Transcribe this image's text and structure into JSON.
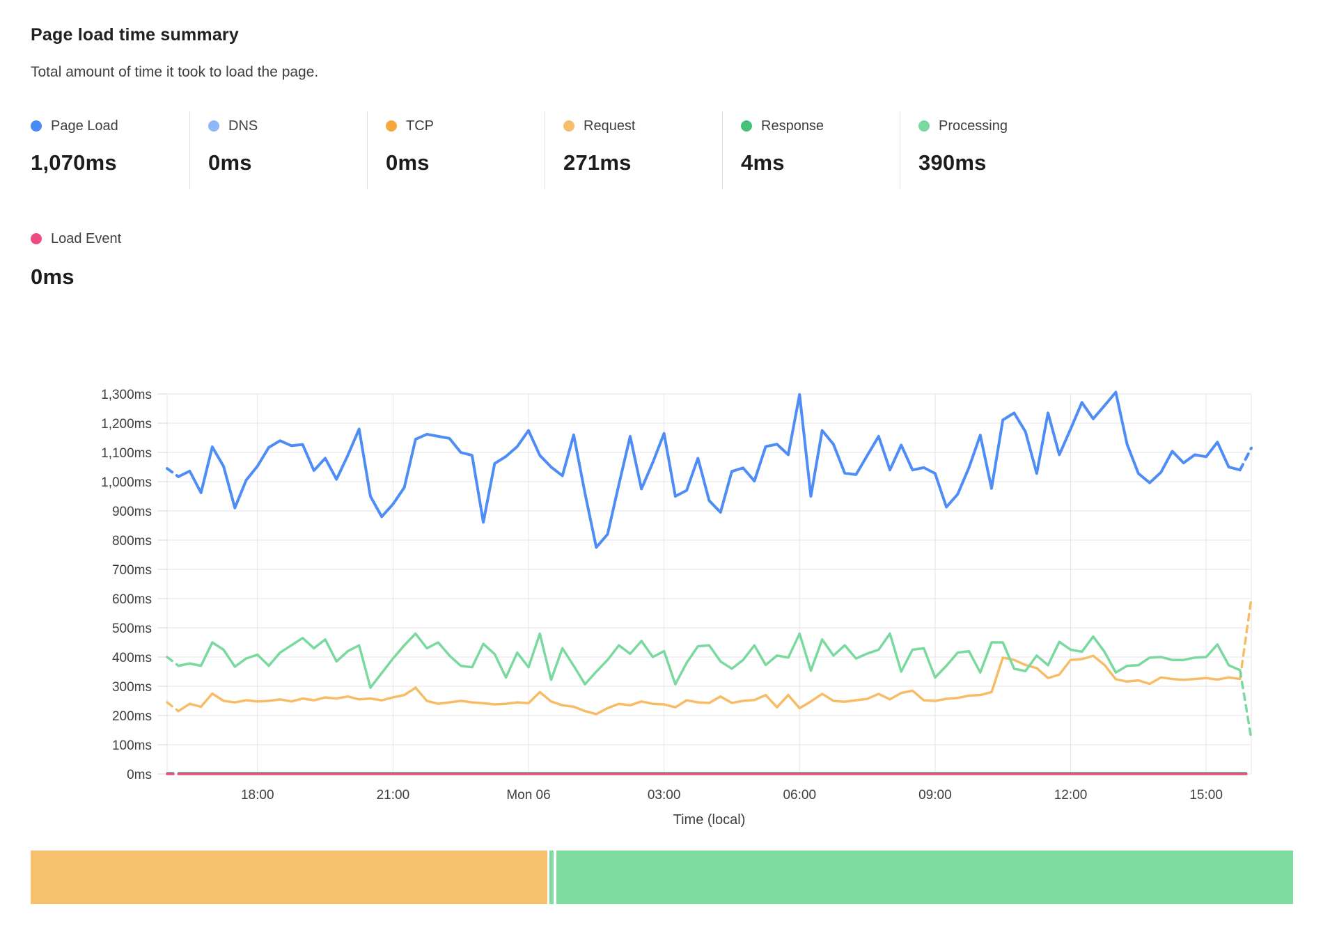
{
  "header": {
    "title": "Page load time summary",
    "subtitle": "Total amount of time it took to load the page."
  },
  "summary": {
    "items": [
      {
        "label": "Page Load",
        "value": "1,070ms",
        "color": "#4A8CF5"
      },
      {
        "label": "DNS",
        "value": "0ms",
        "color": "#8FB8F9"
      },
      {
        "label": "TCP",
        "value": "0ms",
        "color": "#F5A83C"
      },
      {
        "label": "Request",
        "value": "271ms",
        "color": "#F6BE6A"
      },
      {
        "label": "Response",
        "value": "4ms",
        "color": "#45C17C"
      },
      {
        "label": "Processing",
        "value": "390ms",
        "color": "#79D99E"
      }
    ],
    "second_row": {
      "label": "Load Event",
      "value": "0ms",
      "color": "#EE4C80"
    }
  },
  "chart_data": {
    "type": "line",
    "title": "Page load time summary",
    "xlabel": "Time (local)",
    "ylabel": "",
    "y_unit": "ms",
    "ylim": [
      0,
      1300
    ],
    "grid": true,
    "legend_position": "top-stats-row",
    "y_ticks": [
      "0ms",
      "100ms",
      "200ms",
      "300ms",
      "400ms",
      "500ms",
      "600ms",
      "700ms",
      "800ms",
      "900ms",
      "1,000ms",
      "1,100ms",
      "1,200ms",
      "1,300ms"
    ],
    "points_per_series": 97,
    "time_start": "16:00 (Sun 05)",
    "time_end": "16:00 (Mon 06)",
    "x_tick_labels": [
      "18:00",
      "21:00",
      "Mon 06",
      "03:00",
      "06:00",
      "09:00",
      "12:00",
      "15:00"
    ],
    "x_tick_indices": [
      8,
      20,
      32,
      44,
      56,
      68,
      80,
      92
    ],
    "dashed_first_segment": true,
    "dashed_last_segment": true,
    "series": [
      {
        "name": "DNS",
        "color": "#8FB8F9",
        "width": 2.5,
        "flat_value": 0
      },
      {
        "name": "TCP",
        "color": "#F5A83C",
        "width": 2.5,
        "flat_value": 0
      },
      {
        "name": "Page Load",
        "color": "#4E8DF5",
        "width": 4,
        "values": [
          1045,
          1017,
          1036,
          962,
          1119,
          1052,
          910,
          1005,
          1053,
          1117,
          1140,
          1123,
          1127,
          1038,
          1080,
          1008,
          1090,
          1180,
          950,
          880,
          923,
          980,
          1145,
          1162,
          1155,
          1148,
          1100,
          1090,
          861,
          1062,
          1086,
          1120,
          1175,
          1090,
          1050,
          1020,
          1160,
          960,
          775,
          820,
          990,
          1155,
          975,
          1065,
          1165,
          950,
          970,
          1080,
          935,
          895,
          1035,
          1047,
          1002,
          1120,
          1128,
          1092,
          1298,
          950,
          1175,
          1128,
          1029,
          1024,
          1090,
          1155,
          1040,
          1125,
          1040,
          1048,
          1028,
          913,
          957,
          1048,
          1159,
          977,
          1211,
          1235,
          1171,
          1028,
          1235,
          1092,
          1180,
          1271,
          1215,
          1260,
          1306,
          1128,
          1028,
          996,
          1032,
          1104,
          1064,
          1092,
          1085,
          1135,
          1050,
          1040,
          1115
        ]
      },
      {
        "name": "Request",
        "color": "#F6BC66",
        "width": 3.5,
        "values": [
          245,
          215,
          240,
          230,
          275,
          250,
          245,
          252,
          248,
          250,
          255,
          248,
          258,
          252,
          262,
          258,
          265,
          255,
          258,
          252,
          262,
          270,
          295,
          250,
          240,
          245,
          250,
          245,
          242,
          238,
          240,
          245,
          242,
          280,
          248,
          235,
          230,
          215,
          205,
          225,
          240,
          235,
          248,
          240,
          238,
          228,
          252,
          245,
          243,
          265,
          243,
          250,
          253,
          270,
          228,
          270,
          225,
          248,
          274,
          250,
          247,
          252,
          257,
          274,
          255,
          277,
          285,
          252,
          250,
          257,
          260,
          268,
          270,
          280,
          398,
          390,
          373,
          362,
          328,
          340,
          390,
          393,
          404,
          373,
          324,
          316,
          320,
          308,
          330,
          325,
          322,
          325,
          328,
          323,
          330,
          325,
          600
        ]
      },
      {
        "name": "Processing",
        "color": "#79D99E",
        "width": 3.5,
        "values": [
          400,
          370,
          378,
          370,
          450,
          425,
          367,
          395,
          408,
          370,
          415,
          440,
          465,
          430,
          460,
          385,
          420,
          440,
          295,
          345,
          395,
          440,
          480,
          430,
          450,
          405,
          370,
          365,
          445,
          410,
          330,
          415,
          365,
          480,
          322,
          430,
          370,
          307,
          350,
          390,
          440,
          411,
          455,
          400,
          420,
          307,
          380,
          437,
          440,
          385,
          360,
          390,
          440,
          373,
          405,
          398,
          480,
          353,
          460,
          405,
          440,
          395,
          412,
          425,
          480,
          350,
          425,
          430,
          330,
          370,
          415,
          420,
          347,
          450,
          450,
          360,
          352,
          405,
          372,
          452,
          425,
          418,
          470,
          418,
          347,
          370,
          372,
          398,
          400,
          390,
          390,
          398,
          400,
          443,
          372,
          355,
          120
        ]
      },
      {
        "name": "Response",
        "color": "#45C17C",
        "width": 2.5,
        "flat_value": 4
      },
      {
        "name": "Load Event",
        "color": "#EE4C80",
        "width": 3.5,
        "flat_value": 0
      }
    ]
  },
  "timeline_bar": {
    "segments": [
      {
        "color": "#F7C06E",
        "width_pct": 40.9
      },
      {
        "color": "#FFFFFF",
        "width_pct": 0.2
      },
      {
        "color": "#7EDCA0",
        "width_pct": 0.3
      },
      {
        "color": "#FFFFFF",
        "width_pct": 0.25
      },
      {
        "color": "#7EDCA0",
        "width_pct": 58.35
      }
    ]
  }
}
